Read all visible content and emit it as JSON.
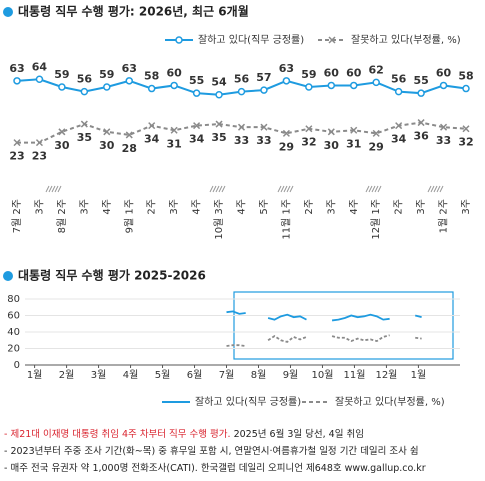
{
  "chart_data": [
    {
      "type": "line",
      "title": "대통령 직무 수행 평가: 2026년, 최근 6개월",
      "categories": [
        "7월 2주",
        "3주",
        "8월 2주",
        "3주",
        "4주",
        "9월 1주",
        "2주",
        "3주",
        "4주",
        "10월 3주",
        "4주",
        "5주",
        "11월 1주",
        "2주",
        "3주",
        "4주",
        "12월 1주",
        "2주",
        "3주",
        "1월 2주",
        "3주"
      ],
      "ylim": [
        15,
        70
      ],
      "series": [
        {
          "name": "잘하고 있다(직무 긍정률)",
          "color": "#1e9be0",
          "values": [
            63,
            64,
            59,
            56,
            59,
            63,
            58,
            60,
            55,
            54,
            56,
            57,
            63,
            59,
            60,
            60,
            62,
            56,
            55,
            60,
            58
          ]
        },
        {
          "name": "잘못하고 있다(부정률, %)",
          "color": "#8a8a8a",
          "values": [
            23,
            23,
            30,
            35,
            30,
            28,
            34,
            31,
            34,
            35,
            33,
            33,
            29,
            32,
            30,
            31,
            29,
            34,
            36,
            33,
            32
          ]
        }
      ]
    },
    {
      "type": "line",
      "title": "대통령 직무 수행 평가 2025-2026",
      "x": [
        7.0,
        7.2,
        7.4,
        7.6,
        7.8,
        8.3,
        8.5,
        8.7,
        8.9,
        9.1,
        9.3,
        9.5,
        9.7,
        10.3,
        10.5,
        10.7,
        10.9,
        11.1,
        11.3,
        11.5,
        11.7,
        11.9,
        12.1,
        12.5,
        12.9,
        13.1
      ],
      "xlim": [
        0.7,
        14.3
      ],
      "xticks": [
        {
          "value": 1,
          "label": "1월"
        },
        {
          "value": 2,
          "label": "2월"
        },
        {
          "value": 3,
          "label": "3월"
        },
        {
          "value": 4,
          "label": "4월"
        },
        {
          "value": 5,
          "label": "5월"
        },
        {
          "value": 6,
          "label": "6월"
        },
        {
          "value": 7,
          "label": "7월"
        },
        {
          "value": 8,
          "label": "8월"
        },
        {
          "value": 9,
          "label": "9월"
        },
        {
          "value": 10,
          "label": "10월"
        },
        {
          "value": 11,
          "label": "11월"
        },
        {
          "value": 12,
          "label": "12월"
        },
        {
          "value": 13,
          "label": "1월"
        }
      ],
      "ylim": [
        0,
        80
      ],
      "yticks": [
        0,
        20,
        40,
        60,
        80
      ],
      "grid": true,
      "series": [
        {
          "name": "잘하고 있다(직무 긍정률)",
          "color": "#1e9be0",
          "values": [
            64,
            65,
            62,
            63,
            null,
            57,
            55,
            59,
            61,
            58,
            59,
            55,
            null,
            54,
            55,
            57,
            60,
            58,
            59,
            61,
            59,
            55,
            56,
            null,
            60,
            58
          ]
        },
        {
          "name": "잘못하고 있다(부정률, %)",
          "color": "#8a8a8a",
          "values": [
            23,
            24,
            24,
            23,
            null,
            30,
            35,
            30,
            28,
            34,
            31,
            34,
            null,
            35,
            33,
            33,
            29,
            32,
            30,
            31,
            29,
            34,
            36,
            null,
            33,
            32
          ]
        }
      ]
    }
  ],
  "notes": [
    {
      "red": "- 제21대 이재명 대통령 취임 4주 차부터 직무 수행 평가.",
      "text": " 2025년 6월 3일 당선, 4일 취임"
    },
    {
      "text": "- 2023년부터 주중 조사 기간(화~목) 중 휴무일 포함 시, 연말연시·여름휴가철 일정 기간 데일리 조사 쉼"
    },
    {
      "text": "- 매주 전국 유권자 약 1,000명 전화조사(CATI). 한국갤럽 데일리 오피니언 제648호 www.gallup.co.kr"
    }
  ]
}
